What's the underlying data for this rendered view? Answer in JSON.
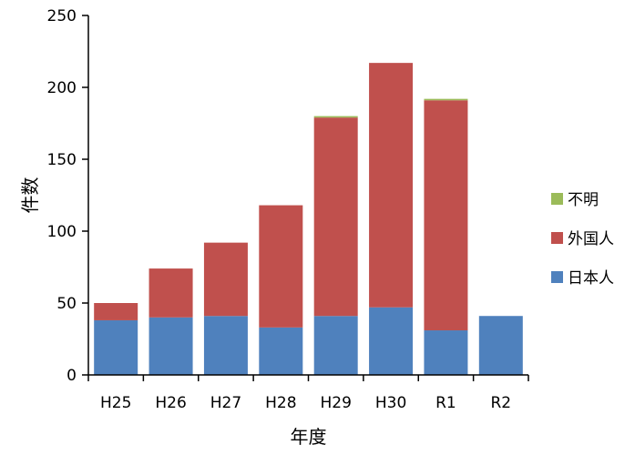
{
  "chart_data": {
    "type": "bar",
    "stacked": true,
    "categories": [
      "H25",
      "H26",
      "H27",
      "H28",
      "H29",
      "H30",
      "R1",
      "R2"
    ],
    "series": [
      {
        "name": "日本人",
        "color": "#4F81BD",
        "values": [
          38,
          40,
          41,
          33,
          41,
          47,
          31,
          41
        ]
      },
      {
        "name": "外国人",
        "color": "#C0504D",
        "values": [
          12,
          34,
          51,
          85,
          138,
          170,
          160,
          0
        ]
      },
      {
        "name": "不明",
        "color": "#9BBB59",
        "values": [
          0,
          0,
          0,
          0,
          1,
          0,
          1,
          0
        ]
      }
    ],
    "xlabel": "年度",
    "ylabel": "件数",
    "ylim": [
      0,
      250
    ],
    "yticks": [
      0,
      50,
      100,
      150,
      200,
      250
    ],
    "grid": false,
    "legend_position": "right"
  }
}
